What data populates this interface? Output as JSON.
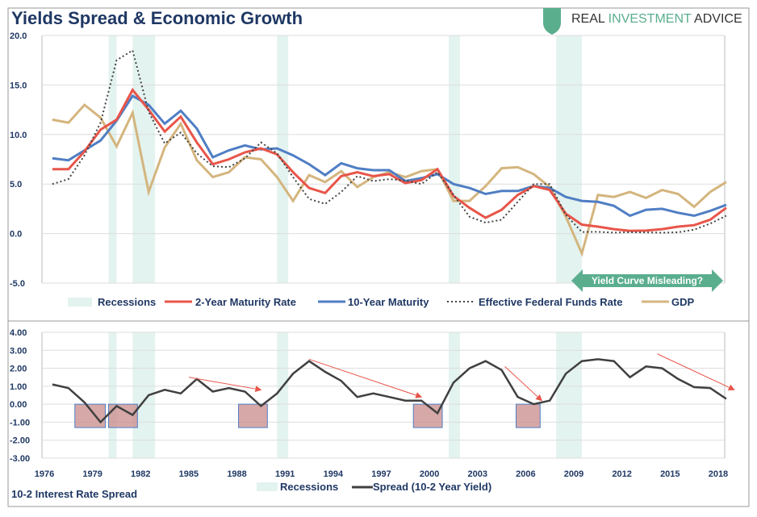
{
  "title": "Yields Spread & Economic Growth",
  "brand": {
    "part1": "REAL ",
    "part2": "INVESTMENT",
    "part3": " ADVICE"
  },
  "annotation": "Yield Curve Misleading?",
  "colors": {
    "two_year": "#e8554a",
    "ten_year": "#4f7ec4",
    "fed": "#444444",
    "gdp": "#d4b57e",
    "spread": "#404040",
    "recession": "#e3f3ef",
    "box_fill": "#c98b8b",
    "box_border": "#4f7ec4",
    "arrow": "#e8554a",
    "annotation": "#5aae8e"
  },
  "chart_data": [
    {
      "type": "line",
      "ylim": [
        -5,
        20
      ],
      "yticks": [
        "20.0",
        "15.0",
        "10.0",
        "5.0",
        "0.0",
        "-5.0"
      ],
      "ytick_values": [
        20,
        15,
        10,
        5,
        0,
        -5
      ],
      "legend": "bottom",
      "recession_label": "Recessions",
      "recessions": [
        [
          1980.0,
          1980.5
        ],
        [
          1981.5,
          1982.9
        ],
        [
          1990.5,
          1991.2
        ],
        [
          2001.2,
          2001.9
        ],
        [
          2007.9,
          2009.5
        ]
      ],
      "x": [
        1976,
        1977,
        1978,
        1979,
        1980,
        1981,
        1982,
        1983,
        1984,
        1985,
        1986,
        1987,
        1988,
        1989,
        1990,
        1991,
        1992,
        1993,
        1994,
        1995,
        1996,
        1997,
        1998,
        1999,
        2000,
        2001,
        2002,
        2003,
        2004,
        2005,
        2006,
        2007,
        2008,
        2009,
        2010,
        2011,
        2012,
        2013,
        2014,
        2015,
        2016,
        2017,
        2018
      ],
      "series": [
        {
          "name": "2-Year Maturity Rate",
          "values": [
            6.5,
            6.5,
            8.3,
            10.5,
            11.5,
            14.5,
            12.5,
            10.3,
            11.8,
            9.2,
            7.0,
            7.5,
            8.2,
            8.6,
            8.0,
            6.2,
            4.6,
            4.1,
            5.8,
            6.2,
            5.8,
            6.0,
            5.1,
            5.4,
            6.5,
            3.8,
            2.6,
            1.6,
            2.4,
            3.9,
            4.8,
            4.4,
            2.0,
            0.9,
            0.7,
            0.45,
            0.28,
            0.3,
            0.45,
            0.7,
            0.85,
            1.4,
            2.6
          ]
        },
        {
          "name": "10-Year Maturity",
          "values": [
            7.6,
            7.4,
            8.4,
            9.4,
            11.4,
            13.9,
            13.0,
            11.1,
            12.4,
            10.6,
            7.7,
            8.4,
            8.9,
            8.5,
            8.6,
            7.9,
            7.0,
            5.9,
            7.1,
            6.6,
            6.4,
            6.4,
            5.3,
            5.6,
            6.0,
            5.0,
            4.6,
            4.0,
            4.3,
            4.3,
            4.8,
            4.6,
            3.7,
            3.3,
            3.2,
            2.8,
            1.8,
            2.4,
            2.5,
            2.1,
            1.8,
            2.3,
            2.9
          ]
        },
        {
          "name": "Effective Federal Funds Rate",
          "values": [
            5.0,
            5.5,
            7.9,
            11.2,
            17.5,
            18.5,
            12.3,
            9.1,
            10.2,
            8.1,
            6.8,
            6.7,
            7.6,
            9.2,
            8.1,
            5.7,
            3.5,
            3.0,
            4.2,
            5.8,
            5.3,
            5.5,
            5.35,
            5.0,
            6.2,
            3.9,
            1.7,
            1.1,
            1.4,
            3.2,
            5.0,
            5.0,
            1.9,
            0.16,
            0.18,
            0.1,
            0.14,
            0.11,
            0.09,
            0.13,
            0.4,
            1.0,
            1.8
          ]
        },
        {
          "name": "GDP",
          "values": [
            11.5,
            11.2,
            13.0,
            11.7,
            8.8,
            12.2,
            4.2,
            8.7,
            11.1,
            7.4,
            5.7,
            6.2,
            7.7,
            7.5,
            5.7,
            3.3,
            5.9,
            5.2,
            6.3,
            4.7,
            5.7,
            6.2,
            5.7,
            6.3,
            6.5,
            3.3,
            3.3,
            4.8,
            6.6,
            6.7,
            6.0,
            4.7,
            1.7,
            -2.0,
            3.9,
            3.7,
            4.2,
            3.6,
            4.4,
            4.0,
            2.7,
            4.2,
            5.2
          ]
        }
      ]
    },
    {
      "type": "line",
      "title": "10-2 Interest Rate Spread",
      "ylim": [
        -3,
        4
      ],
      "yticks": [
        "4.00",
        "3.00",
        "2.00",
        "1.00",
        "0.00",
        "-1.00",
        "-2.00",
        "-3.00"
      ],
      "ytick_values": [
        4,
        3,
        2,
        1,
        0,
        -1,
        -2,
        -3
      ],
      "xticks": [
        "1976",
        "1979",
        "1982",
        "1985",
        "1988",
        "1991",
        "1994",
        "1997",
        "2000",
        "2003",
        "2006",
        "2009",
        "2012",
        "2015",
        "2018"
      ],
      "legend": "bottom",
      "recession_label": "Recessions",
      "series": [
        {
          "name": "Spread (10-2 Year Yield)",
          "values": [
            1.1,
            0.9,
            0.1,
            -1.0,
            -0.1,
            -0.6,
            0.5,
            0.8,
            0.6,
            1.4,
            0.7,
            0.9,
            0.7,
            -0.1,
            0.6,
            1.7,
            2.4,
            1.8,
            1.3,
            0.4,
            0.6,
            0.4,
            0.2,
            0.2,
            -0.5,
            1.2,
            2.0,
            2.4,
            1.9,
            0.4,
            0.0,
            0.2,
            1.7,
            2.4,
            2.5,
            2.4,
            1.5,
            2.1,
            2.0,
            1.4,
            0.95,
            0.9,
            0.3
          ]
        }
      ],
      "inversion_boxes": [
        [
          1977.9,
          1979.8
        ],
        [
          1980.0,
          1981.8
        ],
        [
          1988.1,
          1989.9
        ],
        [
          1999.0,
          2000.8
        ],
        [
          2005.4,
          2006.9
        ]
      ],
      "trend_arrows": [
        [
          1985,
          1.5,
          1989.5,
          0.8
        ],
        [
          1992.5,
          2.5,
          1999.5,
          0.4
        ],
        [
          2004.7,
          2.1,
          2007,
          0.2
        ],
        [
          2014.2,
          2.8,
          2019,
          0.8
        ]
      ]
    }
  ]
}
